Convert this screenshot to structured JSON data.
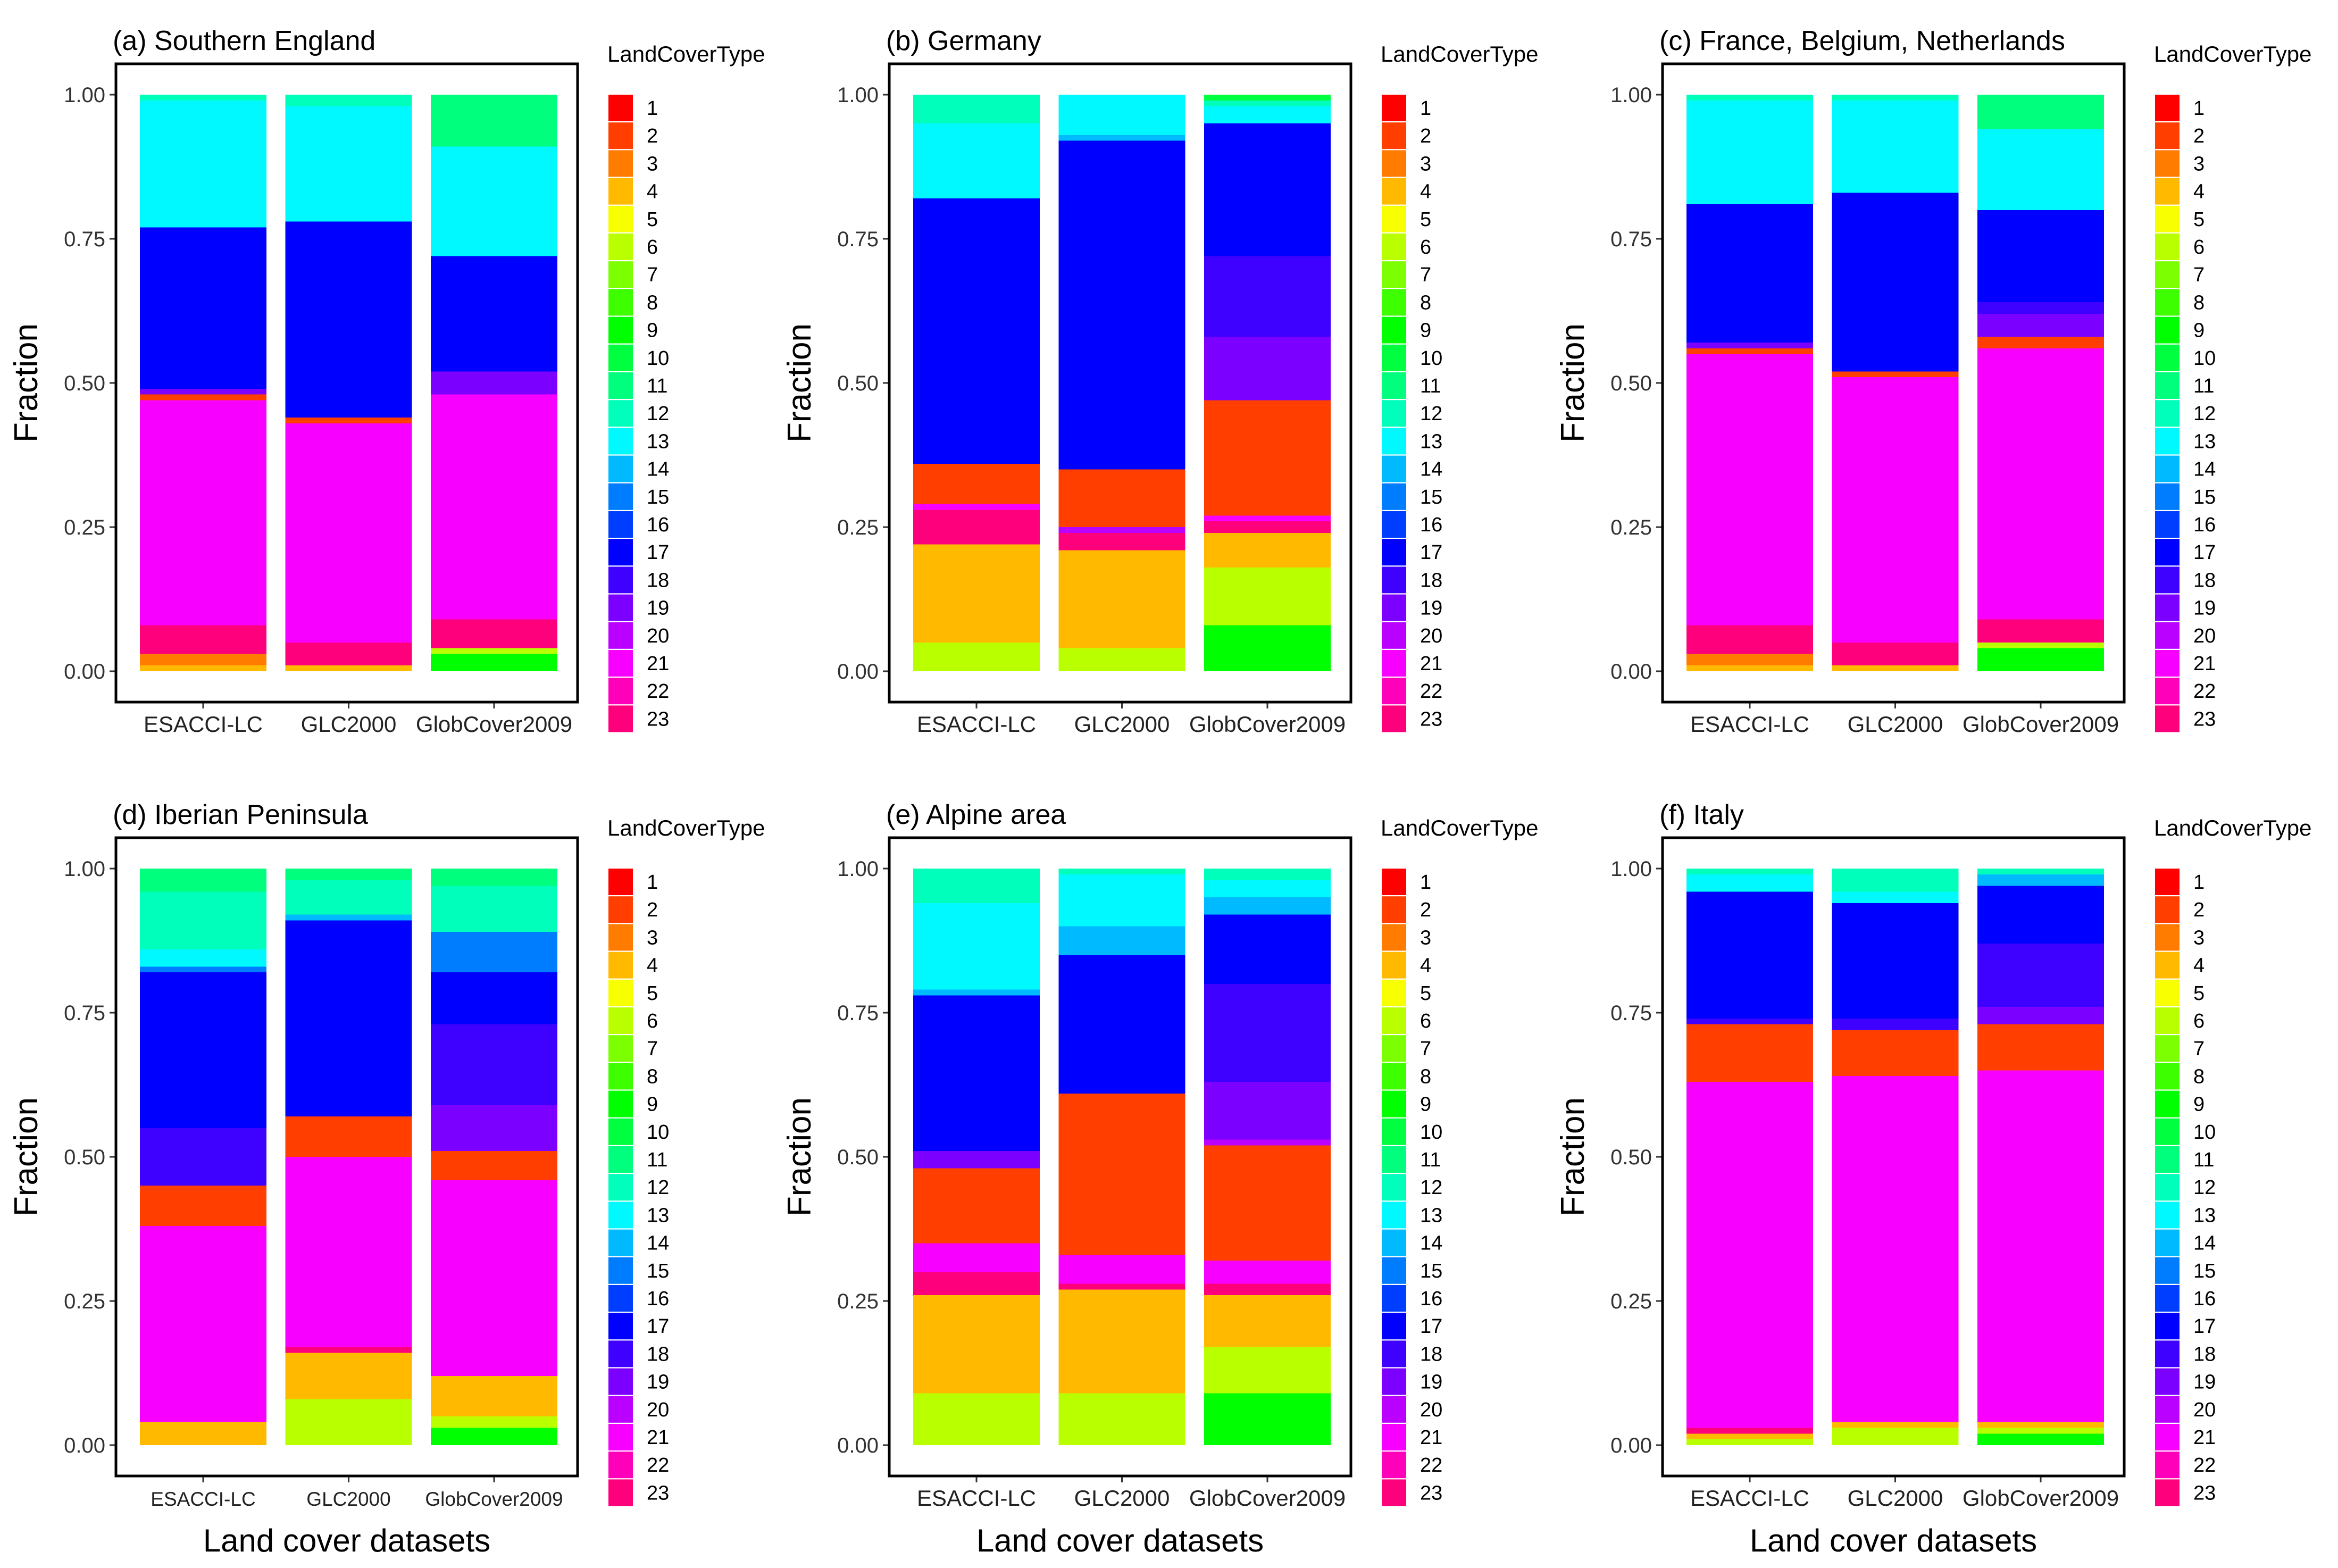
{
  "figure": {
    "shared_xlabel": "Land cover datasets",
    "legend_title": "LandCoverType",
    "legend_labels": [
      "1",
      "2",
      "3",
      "4",
      "5",
      "6",
      "7",
      "8",
      "9",
      "10",
      "11",
      "12",
      "13",
      "14",
      "15",
      "16",
      "17",
      "18",
      "19",
      "20",
      "21",
      "22",
      "23"
    ],
    "palette": [
      "#ff0000",
      "#ff3e00",
      "#ff7c00",
      "#ffba00",
      "#f8ff00",
      "#baff00",
      "#7cff00",
      "#3eff00",
      "#00ff00",
      "#00ff3e",
      "#00ff7c",
      "#00ffba",
      "#00f8ff",
      "#00baff",
      "#007cff",
      "#003eff",
      "#0000ff",
      "#3e00ff",
      "#7c00ff",
      "#ba00ff",
      "#f800ff",
      "#ff00ba",
      "#ff007c"
    ]
  },
  "chart_data": [
    {
      "type": "bar",
      "stacked": true,
      "title": "(a) Southern England",
      "xlabel": "Land cover datasets",
      "ylabel": "Fraction",
      "ylim": [
        0,
        1
      ],
      "yticks": [
        "0.00",
        "0.25",
        "0.50",
        "0.75",
        "1.00"
      ],
      "categories": [
        "ESACCI-LC",
        "GLC2000",
        "GlobCover2009"
      ],
      "bars": [
        [
          {
            "type": 4,
            "value": 0.01
          },
          {
            "type": 3,
            "value": 0.02
          },
          {
            "type": 23,
            "value": 0.05
          },
          {
            "type": 21,
            "value": 0.39
          },
          {
            "type": 2,
            "value": 0.01
          },
          {
            "type": 19,
            "value": 0.01
          },
          {
            "type": 17,
            "value": 0.28
          },
          {
            "type": 13,
            "value": 0.22
          },
          {
            "type": 12,
            "value": 0.01
          }
        ],
        [
          {
            "type": 4,
            "value": 0.01
          },
          {
            "type": 23,
            "value": 0.04
          },
          {
            "type": 21,
            "value": 0.38
          },
          {
            "type": 2,
            "value": 0.01
          },
          {
            "type": 17,
            "value": 0.34
          },
          {
            "type": 13,
            "value": 0.2
          },
          {
            "type": 12,
            "value": 0.02
          }
        ],
        [
          {
            "type": 9,
            "value": 0.03
          },
          {
            "type": 6,
            "value": 0.01
          },
          {
            "type": 23,
            "value": 0.05
          },
          {
            "type": 21,
            "value": 0.39
          },
          {
            "type": 19,
            "value": 0.04
          },
          {
            "type": 17,
            "value": 0.2
          },
          {
            "type": 13,
            "value": 0.19
          },
          {
            "type": 11,
            "value": 0.09
          }
        ]
      ]
    },
    {
      "type": "bar",
      "stacked": true,
      "title": "(b) Germany",
      "xlabel": "Land cover datasets",
      "ylabel": "Fraction",
      "ylim": [
        0,
        1
      ],
      "yticks": [
        "0.00",
        "0.25",
        "0.50",
        "0.75",
        "1.00"
      ],
      "categories": [
        "ESACCI-LC",
        "GLC2000",
        "GlobCover2009"
      ],
      "bars": [
        [
          {
            "type": 6,
            "value": 0.05
          },
          {
            "type": 4,
            "value": 0.17
          },
          {
            "type": 23,
            "value": 0.06
          },
          {
            "type": 21,
            "value": 0.01
          },
          {
            "type": 2,
            "value": 0.07
          },
          {
            "type": 17,
            "value": 0.46
          },
          {
            "type": 13,
            "value": 0.13
          },
          {
            "type": 12,
            "value": 0.05
          }
        ],
        [
          {
            "type": 6,
            "value": 0.04
          },
          {
            "type": 4,
            "value": 0.17
          },
          {
            "type": 23,
            "value": 0.03
          },
          {
            "type": 20,
            "value": 0.01
          },
          {
            "type": 2,
            "value": 0.1
          },
          {
            "type": 17,
            "value": 0.57
          },
          {
            "type": 14,
            "value": 0.01
          },
          {
            "type": 13,
            "value": 0.07
          }
        ],
        [
          {
            "type": 9,
            "value": 0.08
          },
          {
            "type": 6,
            "value": 0.1
          },
          {
            "type": 4,
            "value": 0.06
          },
          {
            "type": 23,
            "value": 0.02
          },
          {
            "type": 21,
            "value": 0.01
          },
          {
            "type": 2,
            "value": 0.2
          },
          {
            "type": 19,
            "value": 0.11
          },
          {
            "type": 18,
            "value": 0.14
          },
          {
            "type": 17,
            "value": 0.23
          },
          {
            "type": 13,
            "value": 0.03
          },
          {
            "type": 12,
            "value": 0.01
          },
          {
            "type": 10,
            "value": 0.01
          }
        ]
      ]
    },
    {
      "type": "bar",
      "stacked": true,
      "title": "(c) France, Belgium, Netherlands",
      "xlabel": "Land cover datasets",
      "ylabel": "Fraction",
      "ylim": [
        0,
        1
      ],
      "yticks": [
        "0.00",
        "0.25",
        "0.50",
        "0.75",
        "1.00"
      ],
      "categories": [
        "ESACCI-LC",
        "GLC2000",
        "GlobCover2009"
      ],
      "bars": [
        [
          {
            "type": 4,
            "value": 0.01
          },
          {
            "type": 3,
            "value": 0.02
          },
          {
            "type": 23,
            "value": 0.05
          },
          {
            "type": 21,
            "value": 0.47
          },
          {
            "type": 2,
            "value": 0.01
          },
          {
            "type": 19,
            "value": 0.01
          },
          {
            "type": 17,
            "value": 0.24
          },
          {
            "type": 13,
            "value": 0.18
          },
          {
            "type": 12,
            "value": 0.01
          }
        ],
        [
          {
            "type": 4,
            "value": 0.01
          },
          {
            "type": 23,
            "value": 0.04
          },
          {
            "type": 21,
            "value": 0.46
          },
          {
            "type": 2,
            "value": 0.01
          },
          {
            "type": 17,
            "value": 0.31
          },
          {
            "type": 13,
            "value": 0.16
          },
          {
            "type": 12,
            "value": 0.01
          }
        ],
        [
          {
            "type": 9,
            "value": 0.04
          },
          {
            "type": 6,
            "value": 0.01
          },
          {
            "type": 23,
            "value": 0.04
          },
          {
            "type": 21,
            "value": 0.47
          },
          {
            "type": 2,
            "value": 0.02
          },
          {
            "type": 19,
            "value": 0.04
          },
          {
            "type": 18,
            "value": 0.02
          },
          {
            "type": 17,
            "value": 0.16
          },
          {
            "type": 13,
            "value": 0.14
          },
          {
            "type": 11,
            "value": 0.06
          }
        ]
      ]
    },
    {
      "type": "bar",
      "stacked": true,
      "title": "(d) Iberian Peninsula",
      "xlabel": "Land cover datasets",
      "ylabel": "Fraction",
      "ylim": [
        0,
        1
      ],
      "yticks": [
        "0.00",
        "0.25",
        "0.50",
        "0.75",
        "1.00"
      ],
      "categories": [
        "ESACCI-LC",
        "GLC2000",
        "GlobCover2009"
      ],
      "bars": [
        [
          {
            "type": 4,
            "value": 0.04
          },
          {
            "type": 21,
            "value": 0.34
          },
          {
            "type": 2,
            "value": 0.07
          },
          {
            "type": 18,
            "value": 0.1
          },
          {
            "type": 17,
            "value": 0.27
          },
          {
            "type": 15,
            "value": 0.01
          },
          {
            "type": 13,
            "value": 0.03
          },
          {
            "type": 12,
            "value": 0.1
          },
          {
            "type": 11,
            "value": 0.04
          }
        ],
        [
          {
            "type": 6,
            "value": 0.08
          },
          {
            "type": 4,
            "value": 0.08
          },
          {
            "type": 23,
            "value": 0.01
          },
          {
            "type": 21,
            "value": 0.33
          },
          {
            "type": 2,
            "value": 0.07
          },
          {
            "type": 17,
            "value": 0.34
          },
          {
            "type": 14,
            "value": 0.01
          },
          {
            "type": 12,
            "value": 0.06
          },
          {
            "type": 11,
            "value": 0.02
          }
        ],
        [
          {
            "type": 9,
            "value": 0.03
          },
          {
            "type": 6,
            "value": 0.02
          },
          {
            "type": 4,
            "value": 0.07
          },
          {
            "type": 21,
            "value": 0.34
          },
          {
            "type": 2,
            "value": 0.05
          },
          {
            "type": 19,
            "value": 0.08
          },
          {
            "type": 18,
            "value": 0.14
          },
          {
            "type": 17,
            "value": 0.09
          },
          {
            "type": 15,
            "value": 0.07
          },
          {
            "type": 12,
            "value": 0.08
          },
          {
            "type": 11,
            "value": 0.03
          }
        ]
      ]
    },
    {
      "type": "bar",
      "stacked": true,
      "title": "(e) Alpine area",
      "xlabel": "Land cover datasets",
      "ylabel": "Fraction",
      "ylim": [
        0,
        1
      ],
      "yticks": [
        "0.00",
        "0.25",
        "0.50",
        "0.75",
        "1.00"
      ],
      "categories": [
        "ESACCI-LC",
        "GLC2000",
        "GlobCover2009"
      ],
      "bars": [
        [
          {
            "type": 6,
            "value": 0.09
          },
          {
            "type": 4,
            "value": 0.17
          },
          {
            "type": 23,
            "value": 0.04
          },
          {
            "type": 21,
            "value": 0.05
          },
          {
            "type": 2,
            "value": 0.13
          },
          {
            "type": 19,
            "value": 0.03
          },
          {
            "type": 17,
            "value": 0.27
          },
          {
            "type": 14,
            "value": 0.01
          },
          {
            "type": 13,
            "value": 0.15
          },
          {
            "type": 12,
            "value": 0.06
          }
        ],
        [
          {
            "type": 6,
            "value": 0.09
          },
          {
            "type": 4,
            "value": 0.18
          },
          {
            "type": 23,
            "value": 0.01
          },
          {
            "type": 21,
            "value": 0.05
          },
          {
            "type": 2,
            "value": 0.28
          },
          {
            "type": 17,
            "value": 0.24
          },
          {
            "type": 14,
            "value": 0.05
          },
          {
            "type": 13,
            "value": 0.09
          },
          {
            "type": 12,
            "value": 0.01
          }
        ],
        [
          {
            "type": 9,
            "value": 0.09
          },
          {
            "type": 6,
            "value": 0.08
          },
          {
            "type": 4,
            "value": 0.09
          },
          {
            "type": 23,
            "value": 0.02
          },
          {
            "type": 21,
            "value": 0.04
          },
          {
            "type": 2,
            "value": 0.2
          },
          {
            "type": 20,
            "value": 0.01
          },
          {
            "type": 19,
            "value": 0.1
          },
          {
            "type": 18,
            "value": 0.17
          },
          {
            "type": 17,
            "value": 0.12
          },
          {
            "type": 14,
            "value": 0.03
          },
          {
            "type": 13,
            "value": 0.03
          },
          {
            "type": 12,
            "value": 0.02
          }
        ]
      ]
    },
    {
      "type": "bar",
      "stacked": true,
      "title": "(f) Italy",
      "xlabel": "Land cover datasets",
      "ylabel": "Fraction",
      "ylim": [
        0,
        1
      ],
      "yticks": [
        "0.00",
        "0.25",
        "0.50",
        "0.75",
        "1.00"
      ],
      "categories": [
        "ESACCI-LC",
        "GLC2000",
        "GlobCover2009"
      ],
      "bars": [
        [
          {
            "type": 6,
            "value": 0.01
          },
          {
            "type": 4,
            "value": 0.01
          },
          {
            "type": 23,
            "value": 0.01
          },
          {
            "type": 21,
            "value": 0.6
          },
          {
            "type": 2,
            "value": 0.1
          },
          {
            "type": 18,
            "value": 0.01
          },
          {
            "type": 17,
            "value": 0.22
          },
          {
            "type": 13,
            "value": 0.03
          },
          {
            "type": 12,
            "value": 0.01
          }
        ],
        [
          {
            "type": 6,
            "value": 0.03
          },
          {
            "type": 4,
            "value": 0.01
          },
          {
            "type": 21,
            "value": 0.6
          },
          {
            "type": 2,
            "value": 0.08
          },
          {
            "type": 18,
            "value": 0.02
          },
          {
            "type": 17,
            "value": 0.2
          },
          {
            "type": 13,
            "value": 0.02
          },
          {
            "type": 12,
            "value": 0.04
          }
        ],
        [
          {
            "type": 9,
            "value": 0.02
          },
          {
            "type": 6,
            "value": 0.01
          },
          {
            "type": 4,
            "value": 0.01
          },
          {
            "type": 21,
            "value": 0.61
          },
          {
            "type": 2,
            "value": 0.08
          },
          {
            "type": 19,
            "value": 0.03
          },
          {
            "type": 18,
            "value": 0.11
          },
          {
            "type": 17,
            "value": 0.1
          },
          {
            "type": 14,
            "value": 0.02
          },
          {
            "type": 12,
            "value": 0.01
          }
        ]
      ]
    }
  ]
}
